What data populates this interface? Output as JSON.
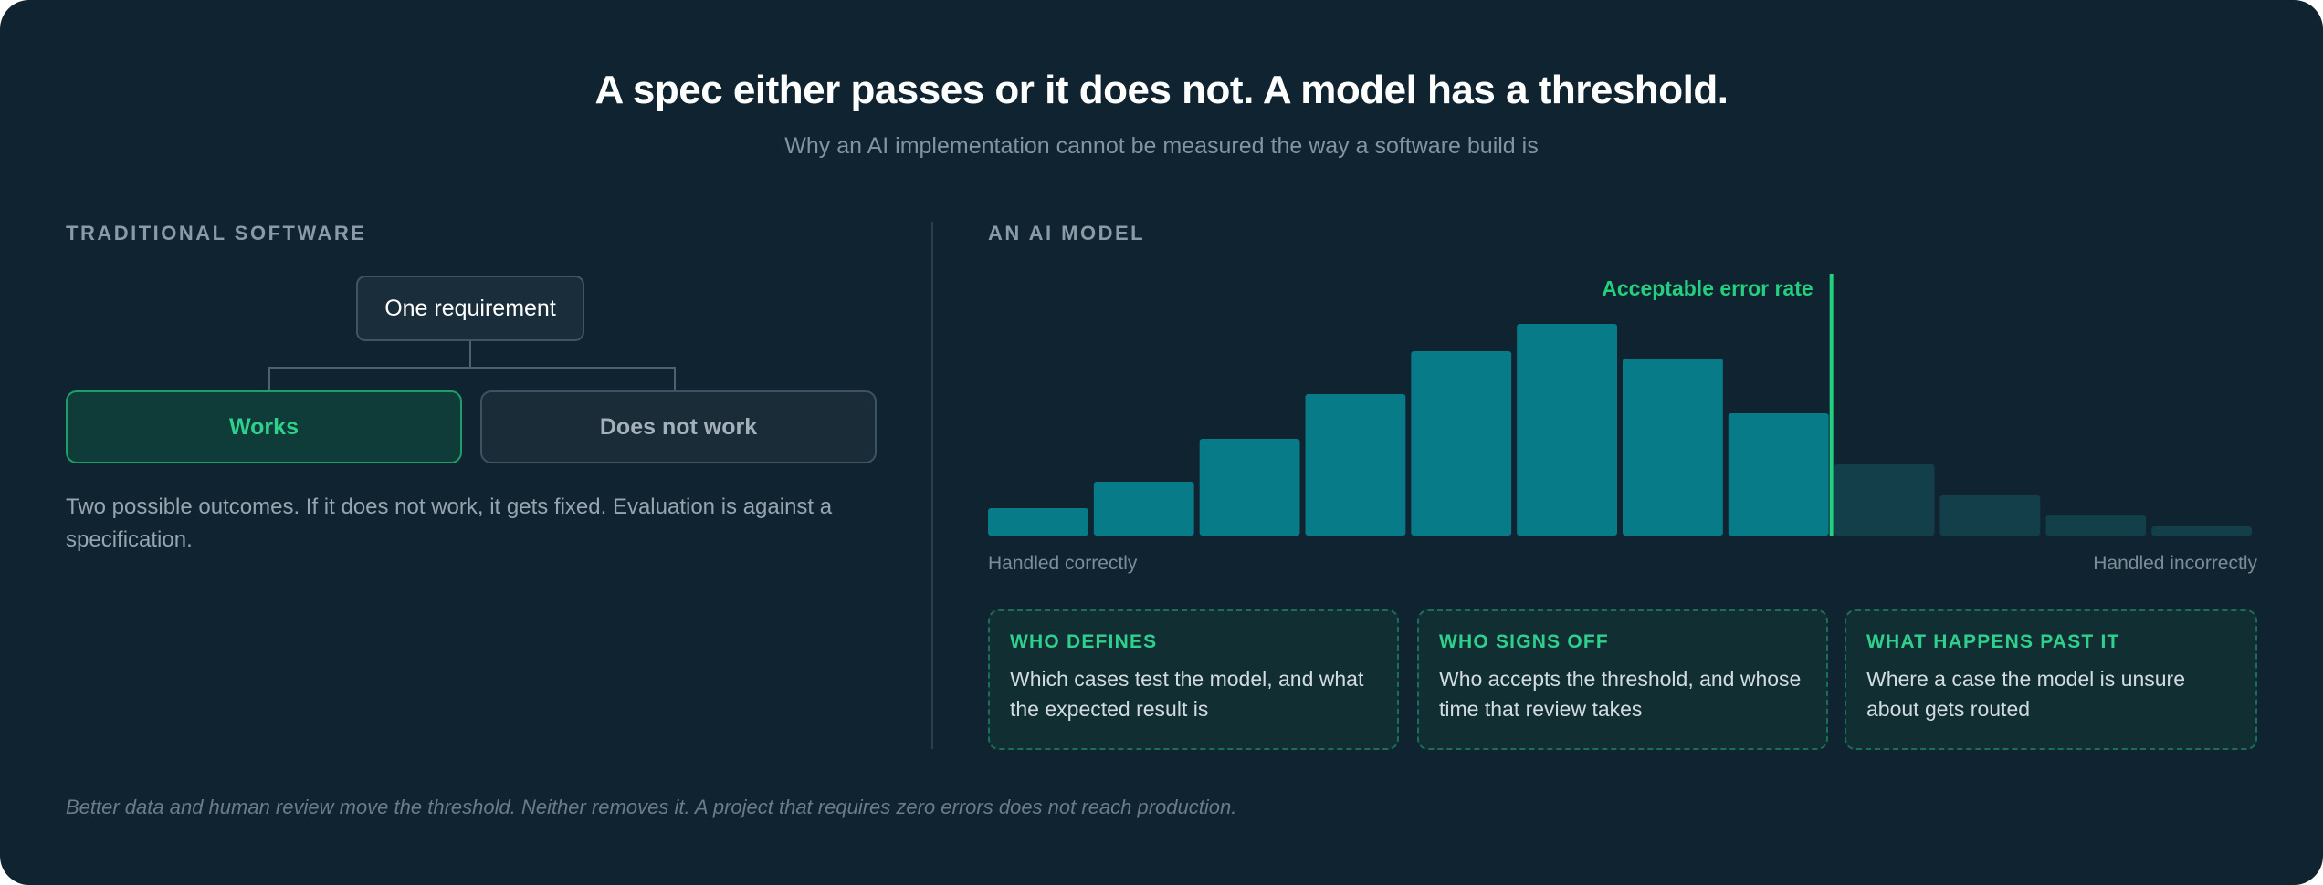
{
  "header": {
    "title": "A spec either passes or it does not. A model has a threshold.",
    "subtitle": "Why an AI implementation cannot be measured the way a software build is"
  },
  "left": {
    "section_label": "TRADITIONAL SOFTWARE",
    "root": "One requirement",
    "outcomes": [
      "Works",
      "Does not work"
    ],
    "description": "Two possible outcomes. If it does not work, it gets fixed. Evaluation is against a specification."
  },
  "right": {
    "section_label": "AN AI MODEL",
    "x_label_left": "Handled correctly",
    "x_label_right": "Handled incorrectly",
    "cards": [
      {
        "title": "WHO DEFINES",
        "text": "Which cases test the model, and what the expected result is"
      },
      {
        "title": "WHO SIGNS OFF",
        "text": "Who accepts the threshold, and whose time that review takes"
      },
      {
        "title": "WHAT HAPPENS PAST IT",
        "text": "Where a case the model is unsure about gets routed"
      }
    ]
  },
  "chart_data": {
    "type": "bar",
    "values": [
      30,
      59,
      106,
      155,
      202,
      232,
      194,
      134,
      78,
      44,
      22,
      10
    ],
    "threshold_after_index": 7,
    "threshold_label": "Acceptable error rate",
    "colors": {
      "within": "#077b88",
      "beyond": "#123f4a",
      "threshold": "#22d07f"
    }
  },
  "footnote": "Better data and human review move the threshold. Neither removes it. A project that requires zero errors does not reach production."
}
